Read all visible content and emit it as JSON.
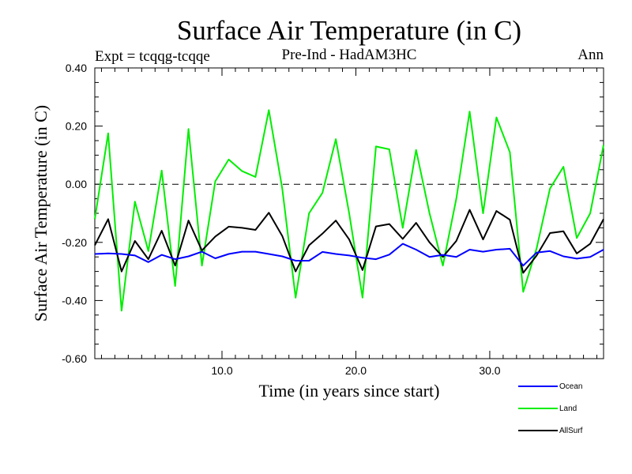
{
  "chart_data": {
    "type": "line",
    "title": "Surface Air Temperature (in C)",
    "subtitle_left": "Expt = tcqqg-tcqqe",
    "subtitle_center": "Pre-Ind - HadAM3HC",
    "subtitle_right": "Ann",
    "xlabel": "Time (in years since start)",
    "ylabel": "Surface Air Temperature (in C)",
    "xlim": [
      0.5,
      38.5
    ],
    "ylim": [
      -0.6,
      0.4
    ],
    "x_ticks": [
      10,
      20,
      30
    ],
    "x_tick_labels": [
      "10.0",
      "20.0",
      "30.0"
    ],
    "y_ticks": [
      -0.6,
      -0.4,
      -0.2,
      0.0,
      0.2,
      0.4
    ],
    "y_tick_labels": [
      "-0.60",
      "-0.40",
      "-0.20",
      "0.00",
      "0.20",
      "0.40"
    ],
    "reference_line": 0.0,
    "legend_position": "bottom-right",
    "x": [
      0.5,
      1.5,
      2.5,
      3.5,
      4.5,
      5.5,
      6.5,
      7.5,
      8.5,
      9.5,
      10.5,
      11.5,
      12.5,
      13.5,
      14.5,
      15.5,
      16.5,
      17.5,
      18.5,
      19.5,
      20.5,
      21.5,
      22.5,
      23.5,
      24.5,
      25.5,
      26.5,
      27.5,
      28.5,
      29.5,
      30.5,
      31.5,
      32.5,
      33.5,
      34.5,
      35.5,
      36.5,
      37.5,
      38.5
    ],
    "series": [
      {
        "name": "Ocean",
        "color": "#0000ff",
        "values": [
          -0.24,
          -0.238,
          -0.24,
          -0.245,
          -0.268,
          -0.243,
          -0.258,
          -0.248,
          -0.232,
          -0.255,
          -0.24,
          -0.232,
          -0.232,
          -0.24,
          -0.248,
          -0.263,
          -0.263,
          -0.233,
          -0.24,
          -0.245,
          -0.253,
          -0.258,
          -0.242,
          -0.205,
          -0.225,
          -0.25,
          -0.243,
          -0.25,
          -0.225,
          -0.232,
          -0.225,
          -0.222,
          -0.28,
          -0.235,
          -0.23,
          -0.248,
          -0.256,
          -0.25,
          -0.225
        ]
      },
      {
        "name": "Land",
        "color": "#00ee00",
        "values": [
          -0.12,
          0.175,
          -0.435,
          -0.06,
          -0.23,
          0.047,
          -0.35,
          0.19,
          -0.28,
          0.01,
          0.085,
          0.045,
          0.025,
          0.255,
          -0.015,
          -0.39,
          -0.1,
          -0.03,
          0.155,
          -0.1,
          -0.39,
          0.13,
          0.12,
          -0.15,
          0.118,
          -0.1,
          -0.28,
          -0.05,
          0.25,
          -0.1,
          0.23,
          0.11,
          -0.37,
          -0.22,
          -0.015,
          0.06,
          -0.185,
          -0.1,
          0.135
        ]
      },
      {
        "name": "AllSurf",
        "color": "#000000",
        "values": [
          -0.21,
          -0.12,
          -0.3,
          -0.195,
          -0.258,
          -0.16,
          -0.28,
          -0.125,
          -0.228,
          -0.18,
          -0.146,
          -0.15,
          -0.157,
          -0.098,
          -0.178,
          -0.3,
          -0.21,
          -0.17,
          -0.125,
          -0.19,
          -0.295,
          -0.145,
          -0.137,
          -0.188,
          -0.133,
          -0.2,
          -0.25,
          -0.195,
          -0.088,
          -0.19,
          -0.092,
          -0.122,
          -0.305,
          -0.245,
          -0.168,
          -0.162,
          -0.238,
          -0.205,
          -0.12
        ]
      }
    ]
  }
}
